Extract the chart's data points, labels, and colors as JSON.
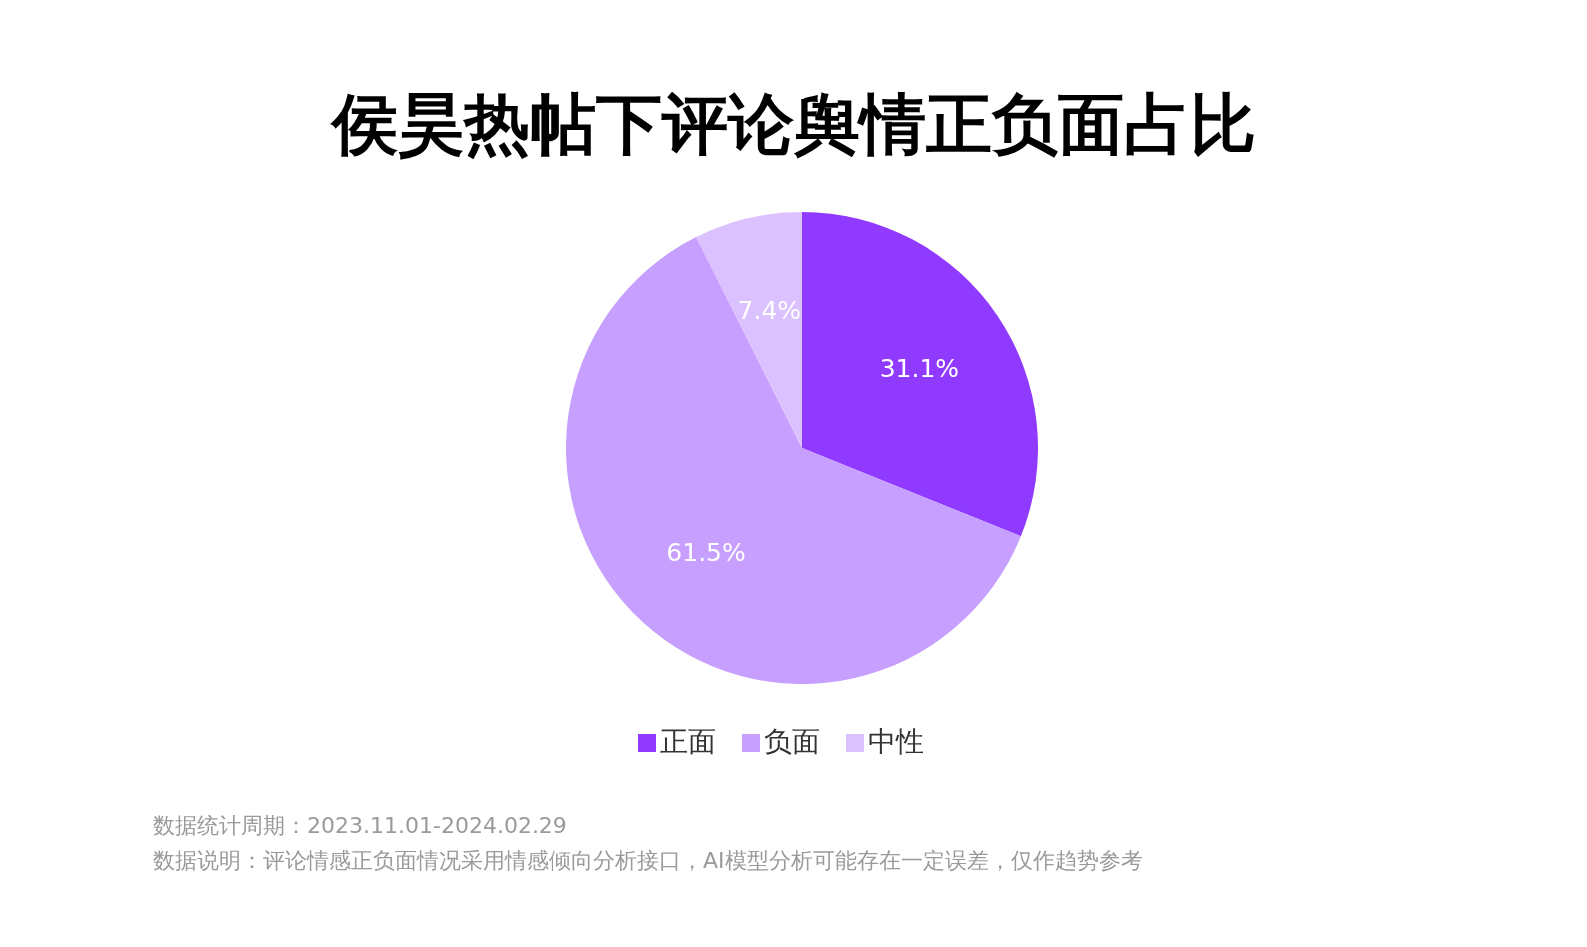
{
  "chart_data": {
    "type": "pie",
    "title": "侯昊热帖下评论舆情正负面占比",
    "categories": [
      "正面",
      "负面",
      "中性"
    ],
    "values": [
      31.1,
      61.5,
      7.4
    ],
    "colors": [
      "#9039ff",
      "#c69fff",
      "#dbc1ff"
    ],
    "value_labels": [
      "31.1%",
      "61.5%",
      "7.4%"
    ],
    "legend": "bottom",
    "annotations": [
      "数据统计周期：2023.11.01-2024.02.29",
      "数据说明：评论情感正负面情况采用情感倾向分析接口，AI模型分析可能存在一定误差，仅作趋势参考"
    ]
  }
}
